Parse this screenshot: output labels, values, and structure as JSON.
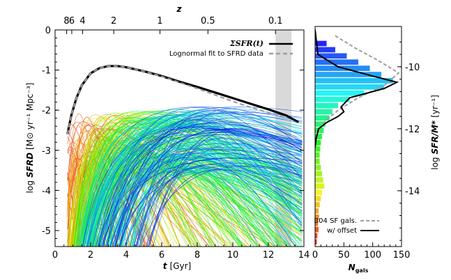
{
  "chart_data": [
    {
      "type": "line",
      "panel": "main",
      "xlabel_var": "t",
      "xlabel_unit": "[Gyr]",
      "ylabel_prefix": "log",
      "ylabel_var": "SFRD",
      "ylabel_unit": "[M⊙ yr⁻¹ Mpc⁻³]",
      "xlim": [
        0,
        14
      ],
      "ylim": [
        -5.4,
        0
      ],
      "xticks": [
        0,
        2,
        4,
        6,
        8,
        10,
        12,
        14
      ],
      "yticks": [
        0,
        -1,
        -2,
        -3,
        -4,
        -5
      ],
      "top_axis_label": "z",
      "top_ticks": [
        {
          "label": "8",
          "t": 0.65
        },
        {
          "label": "6",
          "t": 0.94
        },
        {
          "label": "4",
          "t": 1.55
        },
        {
          "label": "2",
          "t": 3.3
        },
        {
          "label": "1",
          "t": 5.9
        },
        {
          "label": "0.5",
          "t": 8.6
        },
        {
          "label": "0.1",
          "t": 12.4
        }
      ],
      "shaded_band_t": [
        12.4,
        13.3
      ],
      "series": [
        {
          "name": "ΣSFR(t)",
          "color": "#000000",
          "style": "solid",
          "x": [
            0.7,
            0.9,
            1.2,
            1.5,
            2.0,
            2.5,
            3.0,
            3.5,
            4.0,
            5.0,
            6.0,
            7.0,
            8.0,
            9.0,
            10.0,
            11.0,
            12.0,
            13.0,
            13.7
          ],
          "y": [
            -2.6,
            -2.15,
            -1.7,
            -1.38,
            -1.08,
            -0.95,
            -0.9,
            -0.9,
            -0.93,
            -1.03,
            -1.15,
            -1.29,
            -1.42,
            -1.56,
            -1.7,
            -1.84,
            -1.98,
            -2.13,
            -2.3
          ]
        },
        {
          "name": "Lognormal fit to SFRD data",
          "color": "#9e9e9e",
          "style": "dashed",
          "x": [
            0.7,
            0.9,
            1.2,
            1.5,
            2.0,
            2.5,
            3.0,
            3.5,
            4.0,
            5.0,
            6.0,
            7.0,
            8.0,
            9.0,
            10.0,
            11.0,
            12.0,
            13.0
          ],
          "y": [
            -2.6,
            -2.15,
            -1.7,
            -1.38,
            -1.08,
            -0.95,
            -0.9,
            -0.9,
            -0.93,
            -1.03,
            -1.16,
            -1.31,
            -1.46,
            -1.62,
            -1.78,
            -1.93,
            -2.06,
            -2.17
          ]
        }
      ],
      "individual_histories": {
        "count": "many",
        "color_scale": "red (early) to blue (late)"
      }
    },
    {
      "type": "bar",
      "panel": "side",
      "orientation": "horizontal",
      "xlabel_var": "N",
      "xlabel_sub": "gals",
      "ylabel_prefix": "log",
      "ylabel_var": "SFR/M*",
      "ylabel_unit": "[yr⁻¹]",
      "xlim": [
        0,
        150
      ],
      "ylim": [
        -15.8,
        -8.7
      ],
      "xticks": [
        0,
        50,
        100,
        150
      ],
      "yticks": [
        -10,
        -12,
        -14
      ],
      "bin_centers": [
        -9.25,
        -9.45,
        -9.65,
        -9.85,
        -10.05,
        -10.25,
        -10.45,
        -10.65,
        -10.85,
        -11.05,
        -11.25,
        -11.45,
        -11.65,
        -11.85,
        -12.05,
        -12.25,
        -12.45,
        -12.65,
        -12.85,
        -13.05,
        -13.25,
        -13.45,
        -13.65,
        -13.85,
        -14.05,
        -14.25,
        -14.45,
        -14.65,
        -14.85,
        -15.05,
        -15.25,
        -15.45,
        -15.65
      ],
      "counts": [
        20,
        35,
        55,
        75,
        95,
        115,
        135,
        120,
        85,
        60,
        40,
        30,
        25,
        18,
        15,
        12,
        10,
        9,
        8,
        8,
        10,
        12,
        14,
        16,
        12,
        10,
        8,
        6,
        7,
        5,
        6,
        4,
        3
      ],
      "series": [
        {
          "name": "B04 SF gals.",
          "color": "#9e9e9e",
          "style": "dashed",
          "y": [
            -9.0,
            -9.4,
            -9.8,
            -10.2,
            -10.6,
            -11.0,
            -11.4,
            -11.8,
            -12.2
          ],
          "x": [
            35,
            70,
            110,
            145,
            120,
            75,
            40,
            15,
            3
          ]
        },
        {
          "name": "w/ offset",
          "color": "#000000",
          "style": "solid",
          "y": [
            -8.8,
            -9.6,
            -10.0,
            -10.3,
            -10.5,
            -10.7,
            -11.0,
            -11.3,
            -11.45,
            -11.6,
            -11.8,
            -12.0,
            -12.3,
            -12.6
          ],
          "x": [
            0,
            5,
            40,
            100,
            142,
            120,
            60,
            45,
            50,
            40,
            20,
            6,
            2,
            0
          ]
        }
      ]
    }
  ]
}
